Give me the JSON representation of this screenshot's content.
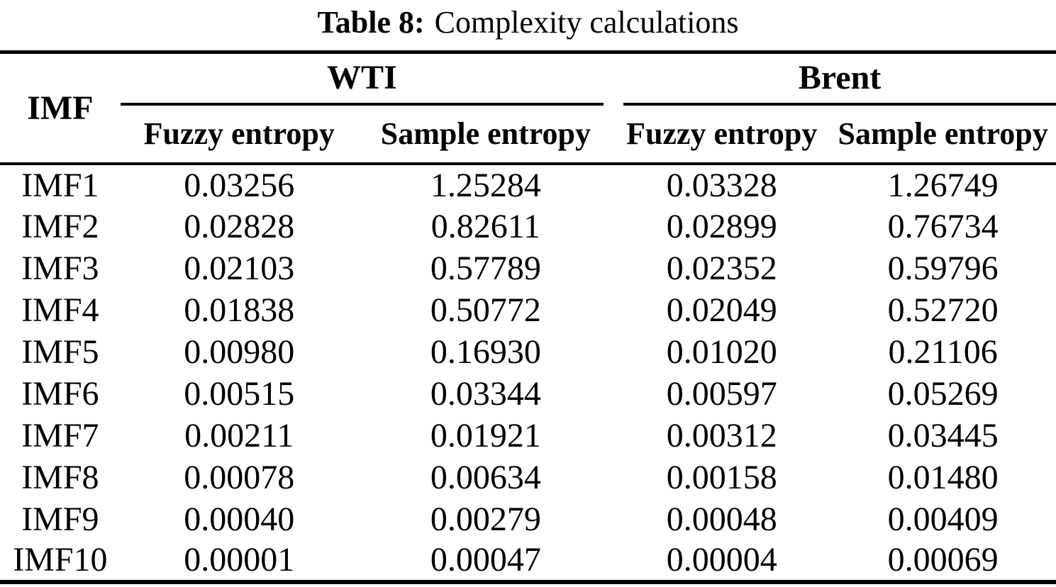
{
  "caption": {
    "label": "Table 8:",
    "text": "Complexity calculations"
  },
  "table": {
    "imf_header": "IMF",
    "groups": {
      "wti": "WTI",
      "brent": "Brent"
    },
    "subheaders": {
      "wti_fuzzy": "Fuzzy entropy",
      "wti_sample": "Sample entropy",
      "brent_fuzzy": "Fuzzy entropy",
      "brent_sample": "Sample entropy"
    },
    "rows": [
      {
        "imf": "IMF1",
        "wti_fuzzy": "0.03256",
        "wti_sample": "1.25284",
        "brent_fuzzy": "0.03328",
        "brent_sample": "1.26749"
      },
      {
        "imf": "IMF2",
        "wti_fuzzy": "0.02828",
        "wti_sample": "0.82611",
        "brent_fuzzy": "0.02899",
        "brent_sample": "0.76734"
      },
      {
        "imf": "IMF3",
        "wti_fuzzy": "0.02103",
        "wti_sample": "0.57789",
        "brent_fuzzy": "0.02352",
        "brent_sample": "0.59796"
      },
      {
        "imf": "IMF4",
        "wti_fuzzy": "0.01838",
        "wti_sample": "0.50772",
        "brent_fuzzy": "0.02049",
        "brent_sample": "0.52720"
      },
      {
        "imf": "IMF5",
        "wti_fuzzy": "0.00980",
        "wti_sample": "0.16930",
        "brent_fuzzy": "0.01020",
        "brent_sample": "0.21106"
      },
      {
        "imf": "IMF6",
        "wti_fuzzy": "0.00515",
        "wti_sample": "0.03344",
        "brent_fuzzy": "0.00597",
        "brent_sample": "0.05269"
      },
      {
        "imf": "IMF7",
        "wti_fuzzy": "0.00211",
        "wti_sample": "0.01921",
        "brent_fuzzy": "0.00312",
        "brent_sample": "0.03445"
      },
      {
        "imf": "IMF8",
        "wti_fuzzy": "0.00078",
        "wti_sample": "0.00634",
        "brent_fuzzy": "0.00158",
        "brent_sample": "0.01480"
      },
      {
        "imf": "IMF9",
        "wti_fuzzy": "0.00040",
        "wti_sample": "0.00279",
        "brent_fuzzy": "0.00048",
        "brent_sample": "0.00409"
      },
      {
        "imf": "IMF10",
        "wti_fuzzy": "0.00001",
        "wti_sample": "0.00047",
        "brent_fuzzy": "0.00004",
        "brent_sample": "0.00069"
      }
    ]
  },
  "colors": {
    "text": "#000000",
    "background": "#ffffff",
    "rule": "#000000"
  }
}
